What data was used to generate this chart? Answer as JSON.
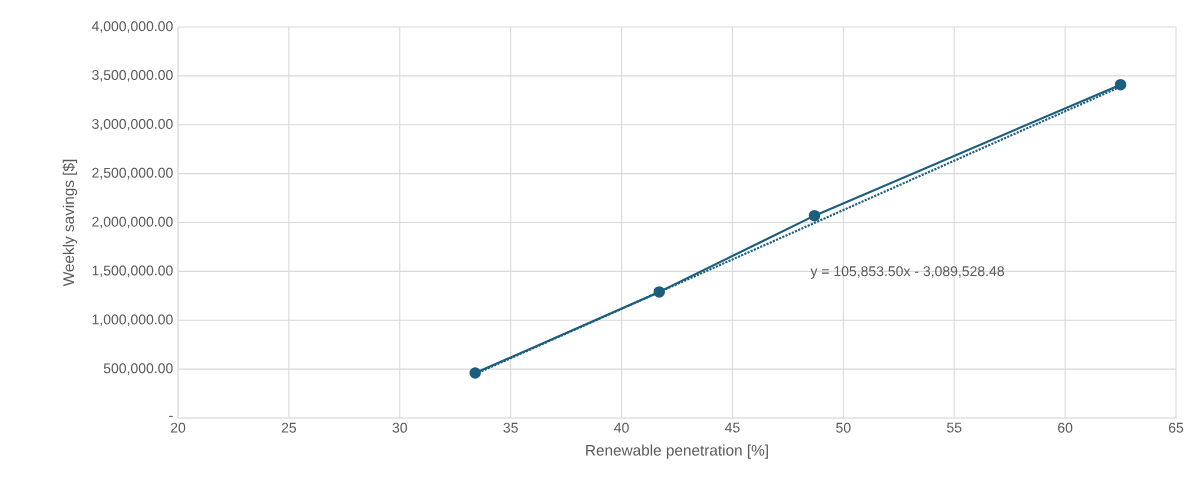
{
  "chart_data": {
    "type": "line",
    "xlabel": "Renewable penetration [%]",
    "ylabel": "Weekly savings [$]",
    "xlim": [
      20,
      65
    ],
    "xticks": [
      20,
      25,
      30,
      35,
      40,
      45,
      50,
      55,
      60,
      65
    ],
    "ylim": [
      0,
      4000000
    ],
    "yticks": [
      {
        "value": 0,
        "label": "-"
      },
      {
        "value": 500000,
        "label": "500,000.00"
      },
      {
        "value": 1000000,
        "label": "1,000,000.00"
      },
      {
        "value": 1500000,
        "label": "1,500,000.00"
      },
      {
        "value": 2000000,
        "label": "2,000,000.00"
      },
      {
        "value": 2500000,
        "label": "2,500,000.00"
      },
      {
        "value": 3000000,
        "label": "3,000,000.00"
      },
      {
        "value": 3500000,
        "label": "3,500,000.00"
      },
      {
        "value": 4000000,
        "label": "4,000,000.00"
      }
    ],
    "grid": true,
    "series": [
      {
        "color": "#1b5e7f",
        "x": [
          33.4,
          41.7,
          48.7,
          62.5
        ],
        "values": [
          460000,
          1290000,
          2070000,
          3410000
        ],
        "marker": "circle",
        "line_style": "solid"
      },
      {
        "type": "line",
        "color": "#1b5e7f",
        "x": [
          33.4,
          62.5
        ],
        "values": [
          450000,
          3390000
        ],
        "marker": "none",
        "line_style": "dotted"
      }
    ],
    "annotations": [
      "y = 105,853.50x - 3,089,528.48"
    ]
  }
}
